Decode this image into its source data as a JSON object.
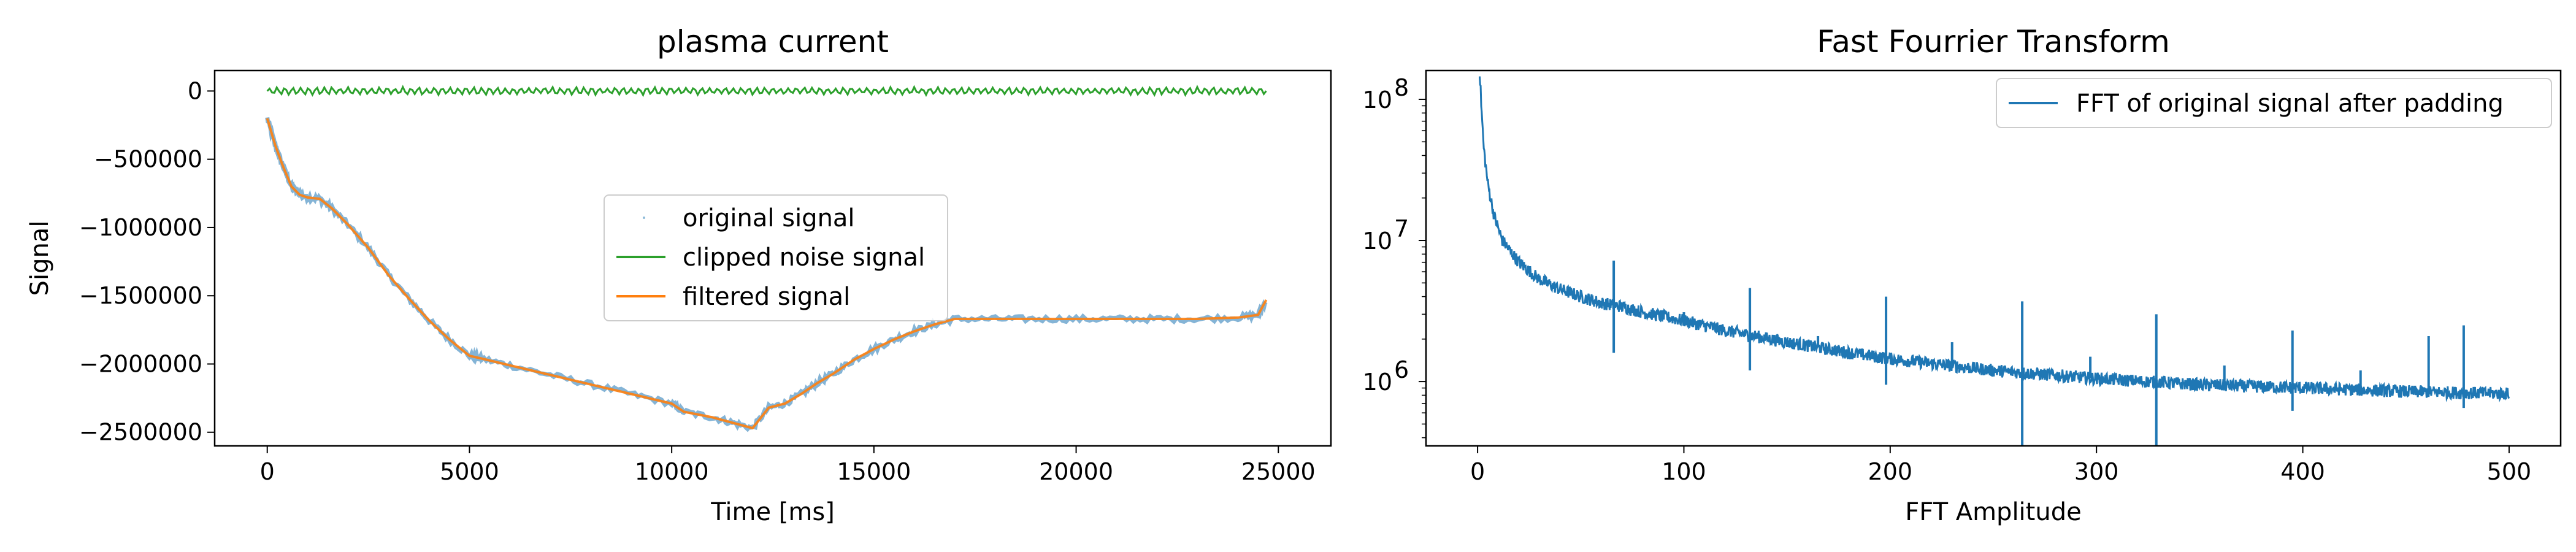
{
  "chart_data": [
    {
      "type": "line",
      "title": "plasma current",
      "xlabel": "Time [ms]",
      "ylabel": "Signal",
      "xlim": [
        -1300,
        26300
      ],
      "ylim": [
        -2600000,
        150000
      ],
      "x_ticks": [
        0,
        5000,
        10000,
        15000,
        20000,
        25000
      ],
      "x_tick_labels": [
        "0",
        "5000",
        "10000",
        "15000",
        "20000",
        "25000"
      ],
      "y_ticks": [
        0,
        -500000,
        -1000000,
        -1500000,
        -2000000,
        -2500000
      ],
      "y_tick_labels": [
        "0",
        "−500000",
        "−1000000",
        "−1500000",
        "−2000000",
        "−2500000"
      ],
      "grid": false,
      "legend_position": "center",
      "legend": [
        "original signal",
        "clipped noise signal",
        "filtered signal"
      ],
      "series": [
        {
          "name": "original signal",
          "style": "points",
          "color": "#1f77b4",
          "x": [
            0,
            200,
            400,
            600,
            800,
            1000,
            1300,
            1600,
            2000,
            2500,
            3000,
            3500,
            4000,
            4500,
            5000,
            5300,
            6000,
            7000,
            8000,
            9000,
            10000,
            10300,
            11000,
            11500,
            12000,
            12400,
            12800,
            13200,
            13600,
            14000,
            14500,
            15000,
            15500,
            16000,
            16500,
            17000,
            18000,
            19000,
            20000,
            21000,
            22000,
            23000,
            24000,
            24500,
            24700
          ],
          "y": [
            -200000,
            -400000,
            -560000,
            -700000,
            -760000,
            -780000,
            -790000,
            -860000,
            -980000,
            -1150000,
            -1350000,
            -1520000,
            -1680000,
            -1820000,
            -1940000,
            -1960000,
            -2010000,
            -2080000,
            -2150000,
            -2220000,
            -2290000,
            -2350000,
            -2390000,
            -2430000,
            -2470000,
            -2320000,
            -2290000,
            -2220000,
            -2140000,
            -2070000,
            -1970000,
            -1890000,
            -1820000,
            -1760000,
            -1710000,
            -1670000,
            -1670000,
            -1670000,
            -1670000,
            -1670000,
            -1670000,
            -1670000,
            -1660000,
            -1640000,
            -1530000
          ]
        },
        {
          "name": "clipped noise signal",
          "style": "line",
          "color": "#2ca02c",
          "x": [
            0,
            24700
          ],
          "y": [
            0,
            0
          ],
          "noise_amplitude": 30000
        },
        {
          "name": "filtered signal",
          "style": "line",
          "color": "#ff7f0e",
          "x": [
            0,
            200,
            400,
            600,
            800,
            1000,
            1300,
            1600,
            2000,
            2500,
            3000,
            3500,
            4000,
            4500,
            5000,
            5300,
            6000,
            7000,
            8000,
            9000,
            10000,
            10300,
            11000,
            11500,
            12000,
            12400,
            12800,
            13200,
            13600,
            14000,
            14500,
            15000,
            15500,
            16000,
            16500,
            17000,
            18000,
            19000,
            20000,
            21000,
            22000,
            23000,
            24000,
            24500,
            24700
          ],
          "y": [
            -200000,
            -400000,
            -560000,
            -700000,
            -760000,
            -780000,
            -790000,
            -860000,
            -980000,
            -1150000,
            -1350000,
            -1520000,
            -1680000,
            -1820000,
            -1940000,
            -1960000,
            -2010000,
            -2080000,
            -2150000,
            -2220000,
            -2290000,
            -2350000,
            -2390000,
            -2430000,
            -2470000,
            -2320000,
            -2290000,
            -2220000,
            -2140000,
            -2070000,
            -1970000,
            -1890000,
            -1820000,
            -1760000,
            -1710000,
            -1670000,
            -1670000,
            -1670000,
            -1670000,
            -1670000,
            -1670000,
            -1670000,
            -1660000,
            -1640000,
            -1530000
          ]
        }
      ]
    },
    {
      "type": "line",
      "title": "Fast Fourrier Transform",
      "xlabel": "FFT Amplitude",
      "ylabel": "",
      "yscale": "log",
      "xlim": [
        -25,
        525
      ],
      "ylim": [
        350000,
        160000000
      ],
      "x_ticks": [
        0,
        100,
        200,
        300,
        400,
        500
      ],
      "x_tick_labels": [
        "0",
        "100",
        "200",
        "300",
        "400",
        "500"
      ],
      "y_ticks": [
        1000000,
        10000000,
        100000000
      ],
      "y_tick_label_mantissa": "10",
      "y_tick_label_exponents": [
        "6",
        "7",
        "8"
      ],
      "grid": false,
      "legend_position": "upper right",
      "legend": [
        "FFT of original signal after padding"
      ],
      "series": [
        {
          "name": "FFT of original signal after padding",
          "style": "line",
          "color": "#1f77b4",
          "x": [
            1,
            2,
            3,
            5,
            8,
            12,
            20,
            30,
            40,
            50,
            60,
            70,
            80,
            100,
            120,
            150,
            180,
            200,
            250,
            300,
            350,
            400,
            450,
            500
          ],
          "y": [
            160000000,
            80000000,
            45000000,
            25000000,
            15000000,
            10000000,
            7000000,
            5300000,
            4500000,
            4000000,
            3600000,
            3400000,
            3100000,
            2700000,
            2300000,
            1900000,
            1600000,
            1450000,
            1200000,
            1050000,
            950000,
            900000,
            850000,
            820000
          ],
          "peaks": [
            {
              "x": 33,
              "y": 5000000
            },
            {
              "x": 66,
              "y": 7200000
            },
            {
              "x": 66,
              "y": 1600000
            },
            {
              "x": 100,
              "y": 3100000
            },
            {
              "x": 132,
              "y": 4600000
            },
            {
              "x": 132,
              "y": 1200000
            },
            {
              "x": 165,
              "y": 2100000
            },
            {
              "x": 198,
              "y": 4000000
            },
            {
              "x": 198,
              "y": 950000
            },
            {
              "x": 230,
              "y": 1900000
            },
            {
              "x": 264,
              "y": 3700000
            },
            {
              "x": 264,
              "y": 350000
            },
            {
              "x": 297,
              "y": 1500000
            },
            {
              "x": 329,
              "y": 3000000
            },
            {
              "x": 329,
              "y": 350000
            },
            {
              "x": 362,
              "y": 1300000
            },
            {
              "x": 395,
              "y": 2300000
            },
            {
              "x": 395,
              "y": 620000
            },
            {
              "x": 428,
              "y": 1200000
            },
            {
              "x": 461,
              "y": 2100000
            },
            {
              "x": 478,
              "y": 2500000
            },
            {
              "x": 478,
              "y": 650000
            }
          ]
        }
      ]
    }
  ]
}
